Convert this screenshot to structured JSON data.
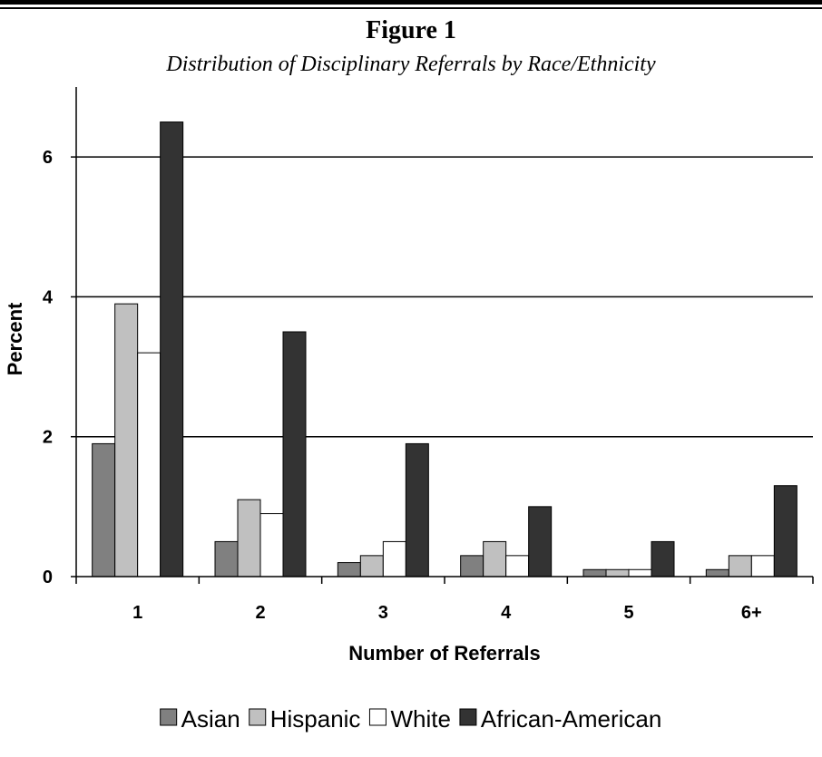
{
  "figure": {
    "title": "Figure 1",
    "subtitle": "Distribution of Disciplinary Referrals by Race/Ethnicity"
  },
  "chart_data": {
    "type": "bar",
    "title": "Figure 1",
    "subtitle": "Distribution of Disciplinary Referrals by Race/Ethnicity",
    "xlabel": "Number of Referrals",
    "ylabel": "Percent",
    "categories": [
      "1",
      "2",
      "3",
      "4",
      "5",
      "6+"
    ],
    "ylim": [
      0,
      7
    ],
    "yticks": [
      0,
      2,
      4,
      6
    ],
    "grid": true,
    "legend_position": "bottom",
    "series": [
      {
        "name": "Asian",
        "color": "#808080",
        "values": [
          1.9,
          0.5,
          0.2,
          0.3,
          0.1,
          0.1
        ]
      },
      {
        "name": "Hispanic",
        "color": "#c0c0c0",
        "values": [
          3.9,
          1.1,
          0.3,
          0.5,
          0.1,
          0.3
        ]
      },
      {
        "name": "White",
        "color": "#ffffff",
        "values": [
          3.2,
          0.9,
          0.5,
          0.3,
          0.1,
          0.3
        ]
      },
      {
        "name": "African-American",
        "color": "#333333",
        "values": [
          6.5,
          3.5,
          1.9,
          1.0,
          0.5,
          1.3
        ]
      }
    ]
  }
}
